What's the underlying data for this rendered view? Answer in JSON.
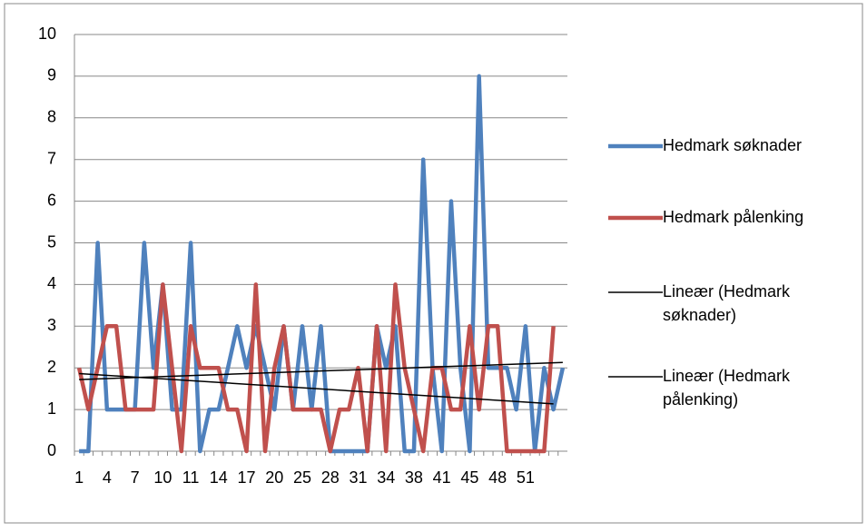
{
  "chart_data": {
    "type": "line",
    "categories": [
      "1",
      null,
      null,
      "4",
      null,
      null,
      "7",
      null,
      null,
      "10",
      null,
      null,
      "11",
      null,
      null,
      "14",
      null,
      null,
      "17",
      null,
      null,
      "20",
      null,
      null,
      "25",
      null,
      null,
      "28",
      null,
      null,
      "31",
      null,
      null,
      "34",
      null,
      null,
      "38",
      null,
      null,
      "41",
      null,
      null,
      "45",
      null,
      null,
      "48",
      null,
      null,
      "51",
      null,
      null,
      null,
      null
    ],
    "series": [
      {
        "name": "Hedmark søknader",
        "color": "#4f81bd",
        "values": [
          0,
          0,
          5,
          1,
          1,
          1,
          1,
          5,
          2,
          4,
          1,
          1,
          5,
          0,
          1,
          1,
          2,
          3,
          2,
          3,
          2,
          1,
          3,
          1,
          3,
          1,
          3,
          0,
          0,
          0,
          0,
          0,
          3,
          2,
          3,
          0,
          0,
          7,
          2,
          0,
          6,
          2,
          0,
          9,
          2,
          2,
          2,
          1,
          3,
          0,
          2,
          1,
          2
        ]
      },
      {
        "name": "Hedmark pålenking",
        "color": "#c0504d",
        "values": [
          2,
          1,
          2,
          3,
          3,
          1,
          1,
          1,
          1,
          4,
          2,
          0,
          3,
          2,
          2,
          2,
          1,
          1,
          0,
          4,
          0,
          2,
          3,
          1,
          1,
          1,
          1,
          0,
          1,
          1,
          2,
          0,
          3,
          0,
          4,
          2,
          1,
          0,
          2,
          2,
          1,
          1,
          3,
          1,
          3,
          3,
          0,
          0,
          0,
          0,
          0,
          3,
          null
        ]
      }
    ],
    "trendlines": [
      {
        "name": "Lineær (Hedmark søknader)",
        "color": "#000000"
      },
      {
        "name": "Lineær (Hedmark pålenking)",
        "color": "#000000"
      }
    ],
    "ylim": [
      0,
      10
    ],
    "yticks": [
      0,
      1,
      2,
      3,
      4,
      5,
      6,
      7,
      8,
      9,
      10
    ],
    "grid": true,
    "legend": "right"
  }
}
